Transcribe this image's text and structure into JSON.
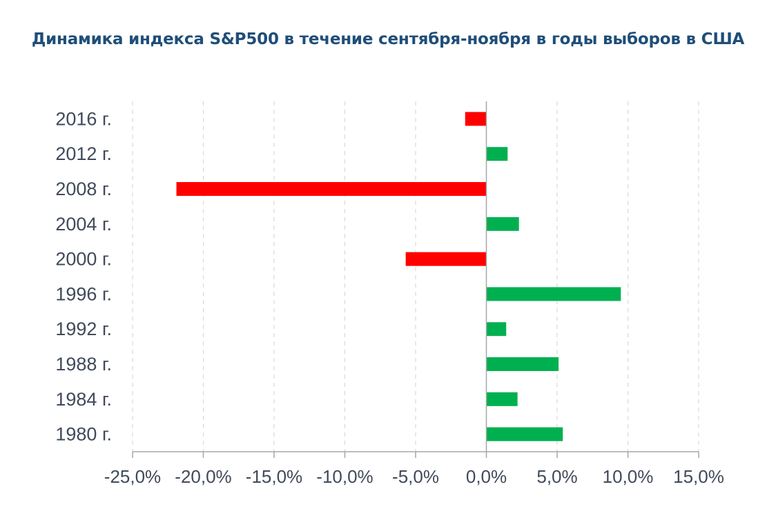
{
  "chart_data": {
    "type": "bar",
    "orientation": "horizontal",
    "title": "Динамика индекса S&P500 в течение сентября-ноября в годы выборов в США",
    "categories": [
      "2016 г.",
      "2012 г.",
      "2008 г.",
      "2004 г.",
      "2000 г.",
      "1996 г.",
      "1992 г.",
      "1988 г.",
      "1984 г.",
      "1980 г."
    ],
    "values": [
      -1.5,
      1.5,
      -21.9,
      2.3,
      -5.7,
      9.5,
      1.4,
      5.1,
      2.2,
      5.4
    ],
    "x_ticks": [
      "-25,0%",
      "-20,0%",
      "-15,0%",
      "-10,0%",
      "-5,0%",
      "0,0%",
      "5,0%",
      "10,0%",
      "15,0%"
    ],
    "xlim": [
      -25,
      15
    ],
    "xlabel": "",
    "ylabel": "",
    "grid": "vertical dashed",
    "colors": {
      "positive": "#00b050",
      "negative": "#ff0000",
      "grid": "#d9d9d9",
      "axis": "#a6a6a6",
      "title": "#1f4e79",
      "text": "#404a5a"
    }
  }
}
